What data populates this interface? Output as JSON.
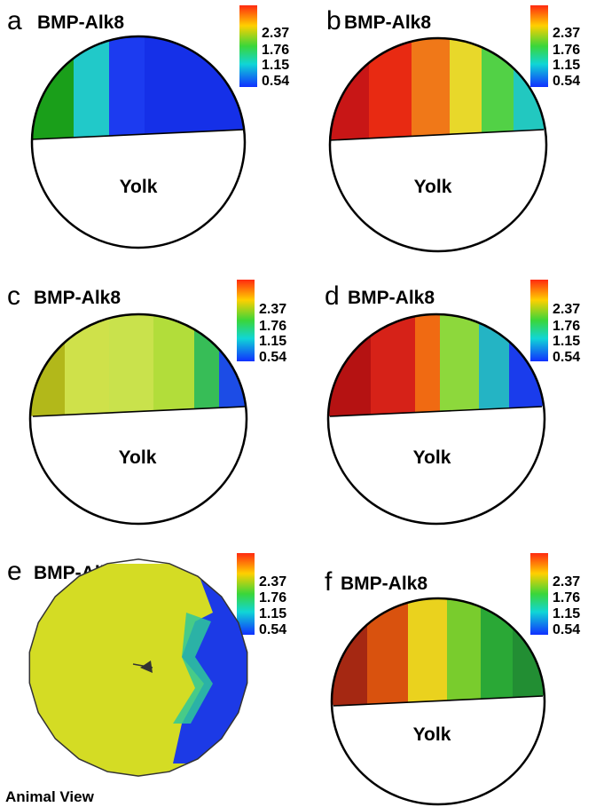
{
  "colorbar": {
    "ticks": [
      "2.37",
      "1.76",
      "1.15",
      "0.54"
    ],
    "gradient": [
      "#ff2a10",
      "#ffd000",
      "#3ad63a",
      "#10d6d6",
      "#1030ff"
    ]
  },
  "panels": [
    {
      "label": "a",
      "title": "BMP-Alk8",
      "view": "lateral",
      "yolk_label": "Yolk",
      "colors": [
        "#1a9f1a",
        "#21c9c9",
        "#1c3bf0",
        "#1530e8",
        "#1530e8",
        "#1530e8"
      ]
    },
    {
      "label": "b",
      "title": "BMP-Alk8",
      "view": "lateral",
      "yolk_label": "Yolk",
      "colors": [
        "#c81616",
        "#e82a12",
        "#f07818",
        "#e8d82a",
        "#52d146",
        "#22c8c0"
      ]
    },
    {
      "label": "c",
      "title": "BMP-Alk8",
      "view": "lateral",
      "yolk_label": "Yolk",
      "colors": [
        "#b2b81a",
        "#cfe14a",
        "#c9e24c",
        "#b2dd3a",
        "#37bd57",
        "#1c4ce6"
      ]
    },
    {
      "label": "d",
      "title": "BMP-Alk8",
      "view": "lateral",
      "yolk_label": "Yolk",
      "colors": [
        "#b51212",
        "#d62218",
        "#f06a12",
        "#8dd83c",
        "#24b4c4",
        "#1a3cec"
      ]
    },
    {
      "label": "e",
      "title": "BMP-Alk8",
      "view": "animal",
      "caption": "Animal View",
      "colors": [
        "#d4dc24",
        "#1c3ae6",
        "#2ec89a"
      ]
    },
    {
      "label": "f",
      "title": "BMP-Alk8",
      "view": "lateral",
      "yolk_label": "Yolk",
      "colors": [
        "#a52812",
        "#d9520e",
        "#ead21e",
        "#79cc2d",
        "#2aa836",
        "#228e33"
      ]
    }
  ]
}
